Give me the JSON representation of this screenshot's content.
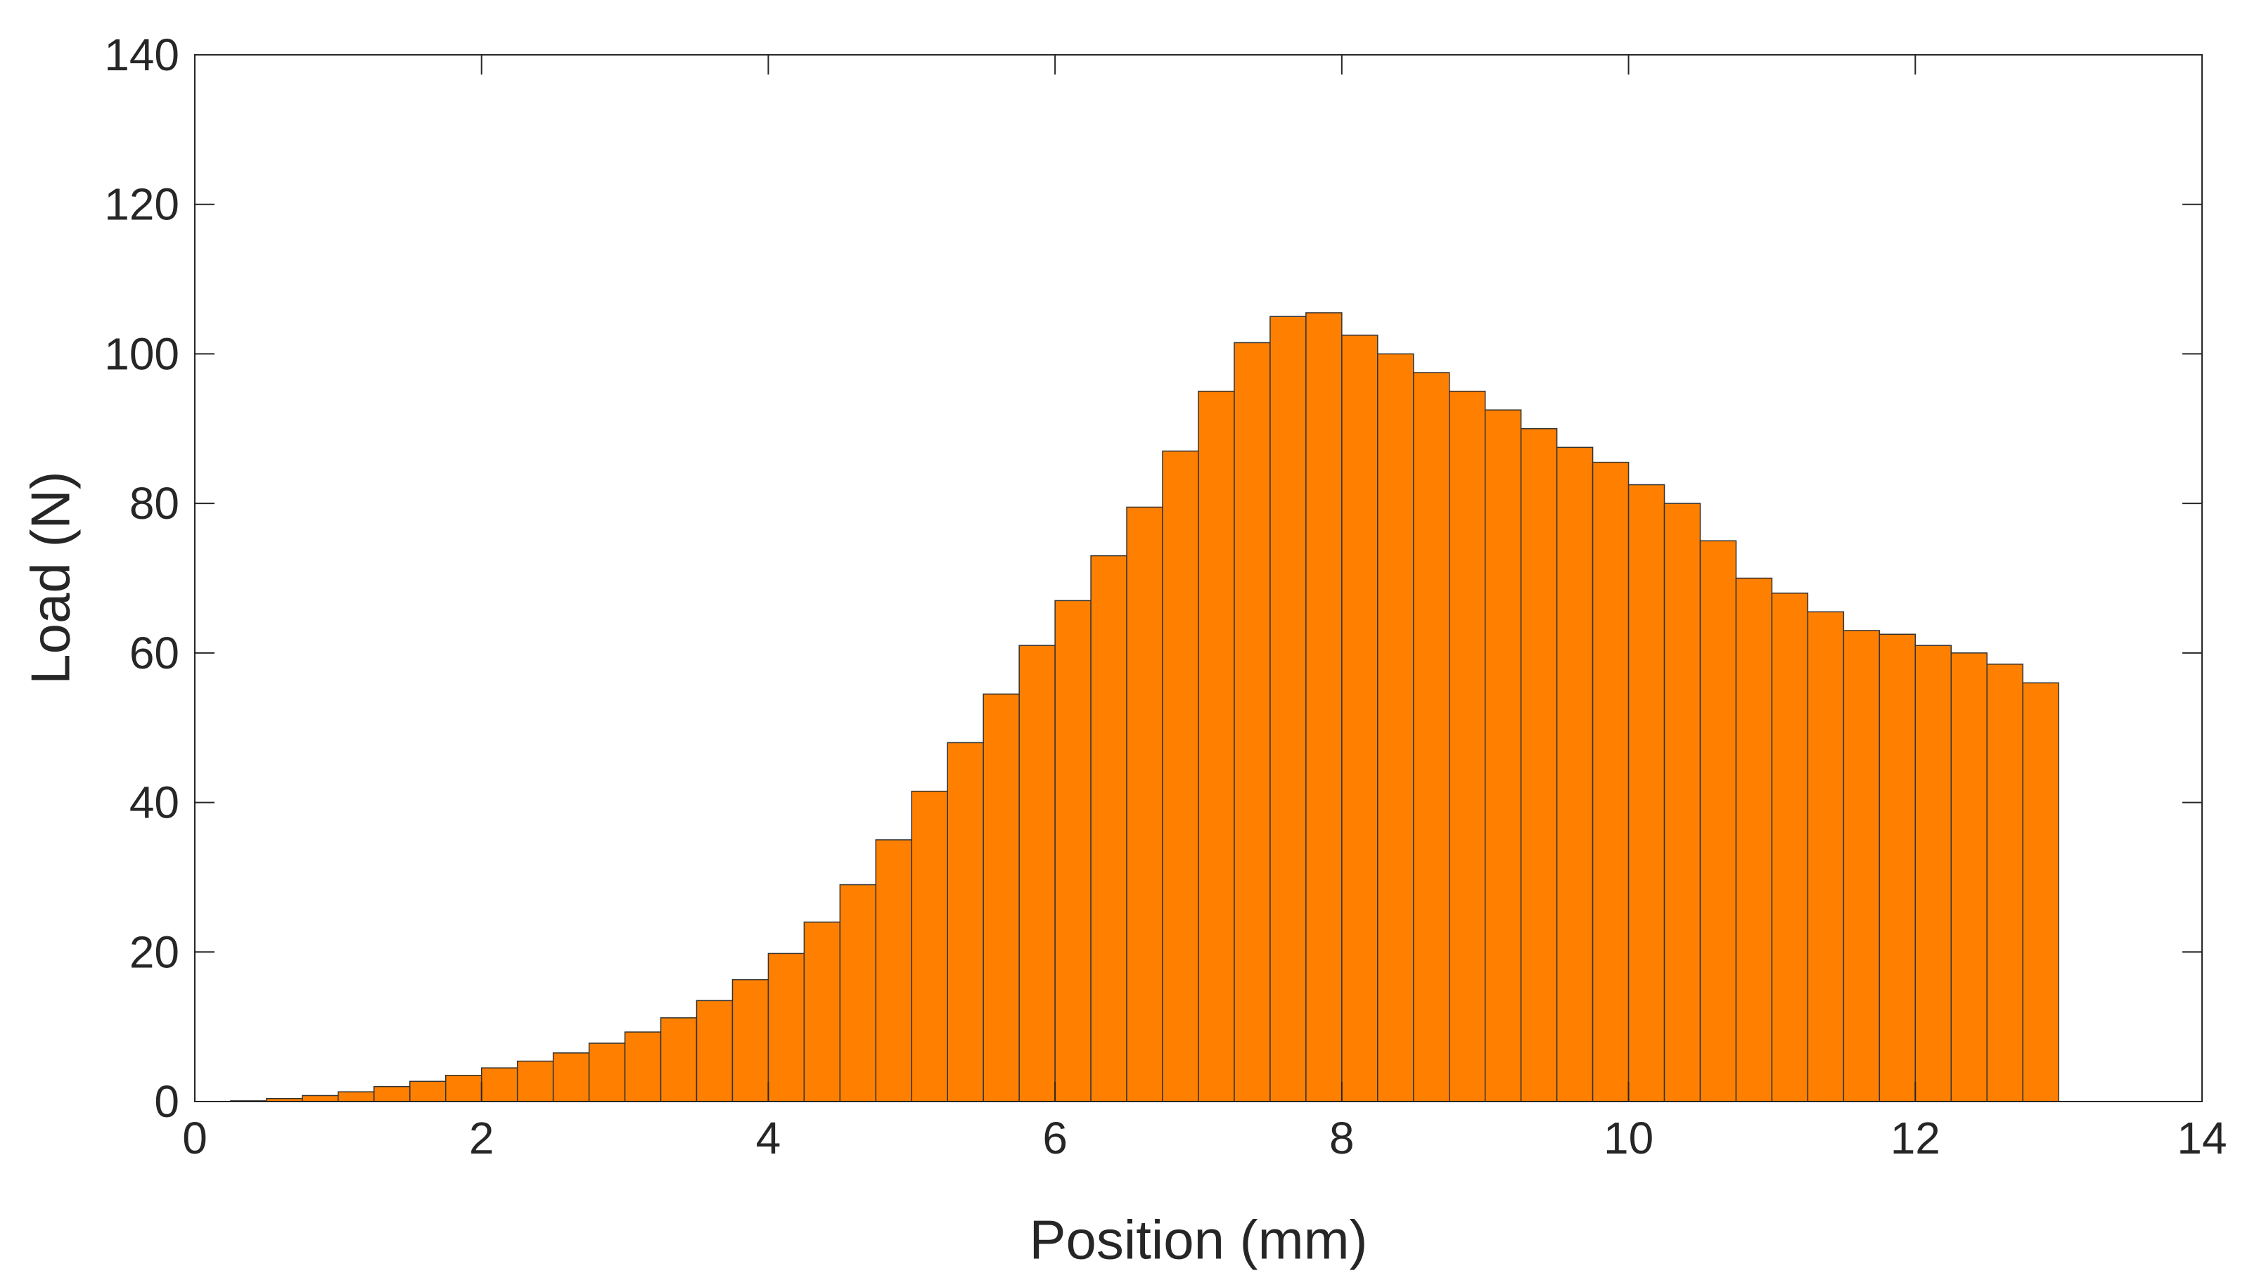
{
  "chart_data": {
    "type": "histogram",
    "x_label": "Position (mm)",
    "y_label": "Load (N)",
    "color": "#ff8000",
    "edge_color": "#333333",
    "bins": [
      0.25,
      0.5,
      0.75,
      1.0,
      1.25,
      1.5,
      1.75,
      2.0,
      2.25,
      2.5,
      2.75,
      3.0,
      3.25,
      3.5,
      3.75,
      4.0,
      4.25,
      4.5,
      4.75,
      5.0,
      5.25,
      5.5,
      5.75,
      6.0,
      6.25,
      6.5,
      6.75,
      7.0,
      7.25,
      7.5,
      7.75,
      8.0,
      8.25,
      8.5,
      8.75,
      9.0,
      9.25,
      9.5,
      9.75,
      10.0,
      10.25,
      10.5,
      10.75,
      11.0,
      11.25,
      11.5,
      11.75,
      12.0,
      12.25,
      12.5,
      12.75,
      13.0
    ],
    "values": [
      0.1,
      0.4,
      0.8,
      1.3,
      2.0,
      2.7,
      3.5,
      4.5,
      5.4,
      6.5,
      7.8,
      9.3,
      11.2,
      13.5,
      16.3,
      19.8,
      24,
      29,
      35,
      41.5,
      48,
      54.5,
      61,
      67,
      73,
      79.5,
      87,
      95,
      101.5,
      105,
      105.5,
      102.5,
      100,
      97.5,
      95,
      92.5,
      90,
      87.5,
      85.5,
      82.5,
      80,
      75,
      70,
      68,
      65.5,
      63,
      62.5,
      61,
      60,
      58.5,
      56
    ],
    "xlim": [
      0,
      14
    ],
    "ylim": [
      0,
      140
    ],
    "xticks": [
      0,
      2,
      4,
      6,
      8,
      10,
      12,
      14
    ],
    "yticks": [
      0,
      20,
      40,
      60,
      80,
      100,
      120,
      140
    ],
    "grid": false
  }
}
